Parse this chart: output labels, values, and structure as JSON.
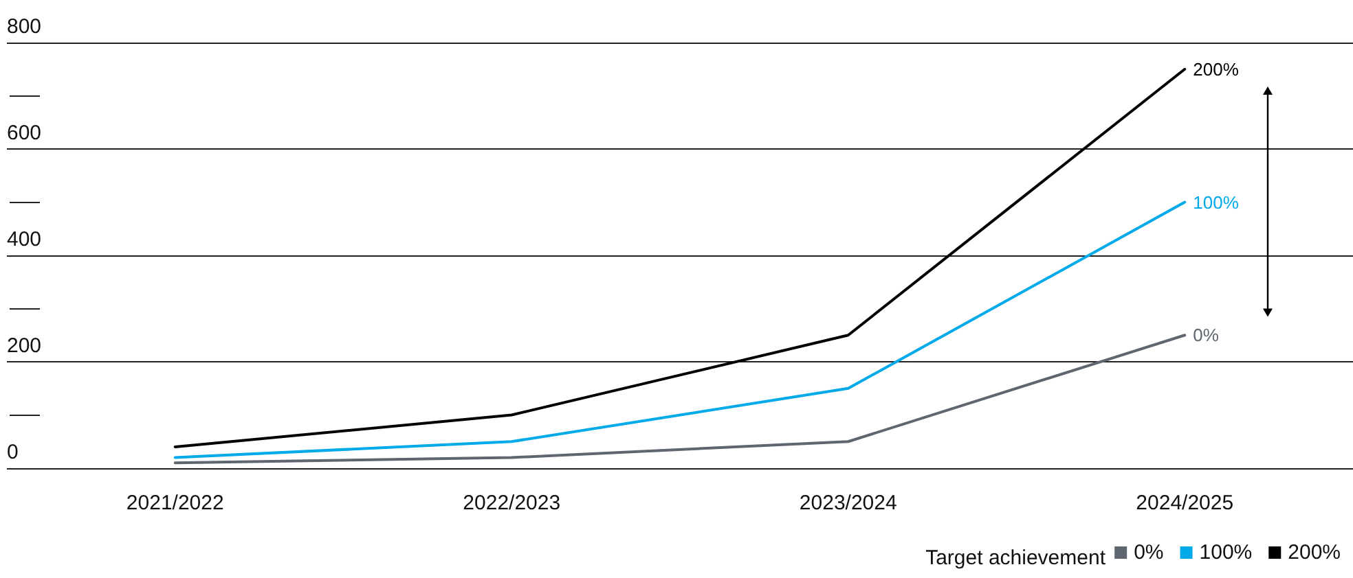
{
  "chart_data": {
    "type": "line",
    "categories": [
      "2021/2022",
      "2022/2023",
      "2023/2024",
      "2024/2025"
    ],
    "series": [
      {
        "name": "0%",
        "color": "#5f6670",
        "values": [
          10,
          20,
          50,
          250
        ]
      },
      {
        "name": "100%",
        "color": "#00a9e8",
        "values": [
          20,
          50,
          150,
          500
        ]
      },
      {
        "name": "200%",
        "color": "#000000",
        "values": [
          40,
          100,
          250,
          750
        ]
      }
    ],
    "ylim": [
      0,
      800
    ],
    "yticks": [
      0,
      200,
      400,
      600,
      800
    ],
    "grid": "y",
    "legend": "bottom right",
    "legend_title": "Target achievement",
    "marker": "none",
    "line_style": "solid"
  }
}
